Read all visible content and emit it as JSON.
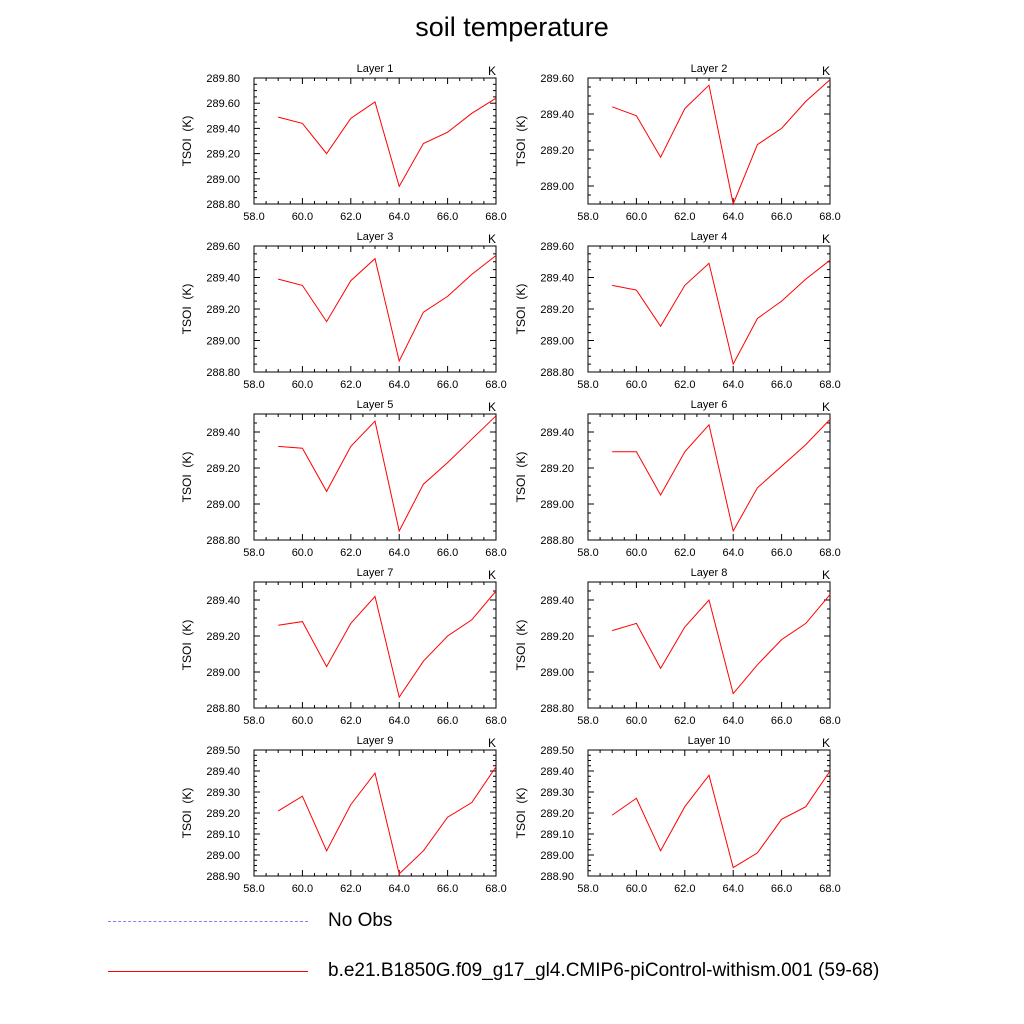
{
  "title": "soil temperature",
  "colors": {
    "model": "#ff0000",
    "obs": "#8080ff"
  },
  "legend": [
    {
      "label": "No Obs",
      "style": "dashed",
      "color": "#8080ff"
    },
    {
      "label": "b.e21.B1850G.f09_g17_gl4.CMIP6-piControl-withism.001 (59-68)",
      "style": "solid",
      "color": "#ff0000"
    }
  ],
  "chart_data": [
    {
      "type": "line",
      "title": "Layer 1",
      "ylabel": "TSOI  (K)",
      "units": "K",
      "xlim": [
        58,
        68
      ],
      "xticks": [
        "58.0",
        "60.0",
        "62.0",
        "64.0",
        "66.0",
        "68.0"
      ],
      "ylim": [
        288.8,
        289.8
      ],
      "yticks": [
        "288.80",
        "289.00",
        "289.20",
        "289.40",
        "289.60",
        "289.80"
      ],
      "x": [
        59,
        60,
        61,
        62,
        63,
        64,
        65,
        66,
        67,
        68
      ],
      "values": [
        289.49,
        289.44,
        289.2,
        289.48,
        289.61,
        288.94,
        289.28,
        289.37,
        289.52,
        289.64
      ]
    },
    {
      "type": "line",
      "title": "Layer 2",
      "ylabel": "TSOI  (K)",
      "units": "K",
      "xlim": [
        58,
        68
      ],
      "xticks": [
        "58.0",
        "60.0",
        "62.0",
        "64.0",
        "66.0",
        "68.0"
      ],
      "ylim": [
        288.9,
        289.6
      ],
      "yticks": [
        "289.00",
        "289.20",
        "289.40",
        "289.60"
      ],
      "x": [
        59,
        60,
        61,
        62,
        63,
        64,
        65,
        66,
        67,
        68
      ],
      "values": [
        289.44,
        289.39,
        289.16,
        289.43,
        289.56,
        288.9,
        289.23,
        289.32,
        289.47,
        289.59
      ]
    },
    {
      "type": "line",
      "title": "Layer 3",
      "ylabel": "TSOI  (K)",
      "units": "K",
      "xlim": [
        58,
        68
      ],
      "xticks": [
        "58.0",
        "60.0",
        "62.0",
        "64.0",
        "66.0",
        "68.0"
      ],
      "ylim": [
        288.8,
        289.6
      ],
      "yticks": [
        "288.80",
        "289.00",
        "289.20",
        "289.40",
        "289.60"
      ],
      "x": [
        59,
        60,
        61,
        62,
        63,
        64,
        65,
        66,
        67,
        68
      ],
      "values": [
        289.39,
        289.35,
        289.12,
        289.38,
        289.52,
        288.87,
        289.18,
        289.28,
        289.42,
        289.54
      ]
    },
    {
      "type": "line",
      "title": "Layer 4",
      "ylabel": "TSOI  (K)",
      "units": "K",
      "xlim": [
        58,
        68
      ],
      "xticks": [
        "58.0",
        "60.0",
        "62.0",
        "64.0",
        "66.0",
        "68.0"
      ],
      "ylim": [
        288.8,
        289.6
      ],
      "yticks": [
        "288.80",
        "289.00",
        "289.20",
        "289.40",
        "289.60"
      ],
      "x": [
        59,
        60,
        61,
        62,
        63,
        64,
        65,
        66,
        67,
        68
      ],
      "values": [
        289.35,
        289.32,
        289.09,
        289.35,
        289.49,
        288.85,
        289.14,
        289.25,
        289.39,
        289.51
      ]
    },
    {
      "type": "line",
      "title": "Layer 5",
      "ylabel": "TSOI  (K)",
      "units": "K",
      "xlim": [
        58,
        68
      ],
      "xticks": [
        "58.0",
        "60.0",
        "62.0",
        "64.0",
        "66.0",
        "68.0"
      ],
      "ylim": [
        288.8,
        289.5
      ],
      "yticks": [
        "288.80",
        "289.00",
        "289.20",
        "289.40"
      ],
      "x": [
        59,
        60,
        61,
        62,
        63,
        64,
        65,
        66,
        67,
        68
      ],
      "values": [
        289.32,
        289.31,
        289.07,
        289.32,
        289.46,
        288.85,
        289.11,
        289.23,
        289.36,
        289.49
      ]
    },
    {
      "type": "line",
      "title": "Layer 6",
      "ylabel": "TSOI  (K)",
      "units": "K",
      "xlim": [
        58,
        68
      ],
      "xticks": [
        "58.0",
        "60.0",
        "62.0",
        "64.0",
        "66.0",
        "68.0"
      ],
      "ylim": [
        288.8,
        289.5
      ],
      "yticks": [
        "288.80",
        "289.00",
        "289.20",
        "289.40"
      ],
      "x": [
        59,
        60,
        61,
        62,
        63,
        64,
        65,
        66,
        67,
        68
      ],
      "values": [
        289.29,
        289.29,
        289.05,
        289.29,
        289.44,
        288.85,
        289.09,
        289.21,
        289.33,
        289.47
      ]
    },
    {
      "type": "line",
      "title": "Layer 7",
      "ylabel": "TSOI  (K)",
      "units": "K",
      "xlim": [
        58,
        68
      ],
      "xticks": [
        "58.0",
        "60.0",
        "62.0",
        "64.0",
        "66.0",
        "68.0"
      ],
      "ylim": [
        288.8,
        289.5
      ],
      "yticks": [
        "288.80",
        "289.00",
        "289.20",
        "289.40"
      ],
      "x": [
        59,
        60,
        61,
        62,
        63,
        64,
        65,
        66,
        67,
        68
      ],
      "values": [
        289.26,
        289.28,
        289.03,
        289.27,
        289.42,
        288.86,
        289.06,
        289.2,
        289.29,
        289.45
      ]
    },
    {
      "type": "line",
      "title": "Layer 8",
      "ylabel": "TSOI  (K)",
      "units": "K",
      "xlim": [
        58,
        68
      ],
      "xticks": [
        "58.0",
        "60.0",
        "62.0",
        "64.0",
        "66.0",
        "68.0"
      ],
      "ylim": [
        288.8,
        289.5
      ],
      "yticks": [
        "288.80",
        "289.00",
        "289.20",
        "289.40"
      ],
      "x": [
        59,
        60,
        61,
        62,
        63,
        64,
        65,
        66,
        67,
        68
      ],
      "values": [
        289.23,
        289.27,
        289.02,
        289.25,
        289.4,
        288.88,
        289.04,
        289.18,
        289.27,
        289.43
      ]
    },
    {
      "type": "line",
      "title": "Layer 9",
      "ylabel": "TSOI  (K)",
      "units": "K",
      "xlim": [
        58,
        68
      ],
      "xticks": [
        "58.0",
        "60.0",
        "62.0",
        "64.0",
        "66.0",
        "68.0"
      ],
      "ylim": [
        288.9,
        289.5
      ],
      "yticks": [
        "288.90",
        "289.00",
        "289.10",
        "289.20",
        "289.30",
        "289.40",
        "289.50"
      ],
      "x": [
        59,
        60,
        61,
        62,
        63,
        64,
        65,
        66,
        67,
        68
      ],
      "values": [
        289.21,
        289.28,
        289.02,
        289.24,
        289.39,
        288.91,
        289.02,
        289.18,
        289.25,
        289.42
      ]
    },
    {
      "type": "line",
      "title": "Layer 10",
      "ylabel": "TSOI  (K)",
      "units": "K",
      "xlim": [
        58,
        68
      ],
      "xticks": [
        "58.0",
        "60.0",
        "62.0",
        "64.0",
        "66.0",
        "68.0"
      ],
      "ylim": [
        288.9,
        289.5
      ],
      "yticks": [
        "288.90",
        "289.00",
        "289.10",
        "289.20",
        "289.30",
        "289.40",
        "289.50"
      ],
      "x": [
        59,
        60,
        61,
        62,
        63,
        64,
        65,
        66,
        67,
        68
      ],
      "values": [
        289.19,
        289.27,
        289.02,
        289.23,
        289.38,
        288.94,
        289.01,
        289.17,
        289.23,
        289.4
      ]
    }
  ]
}
